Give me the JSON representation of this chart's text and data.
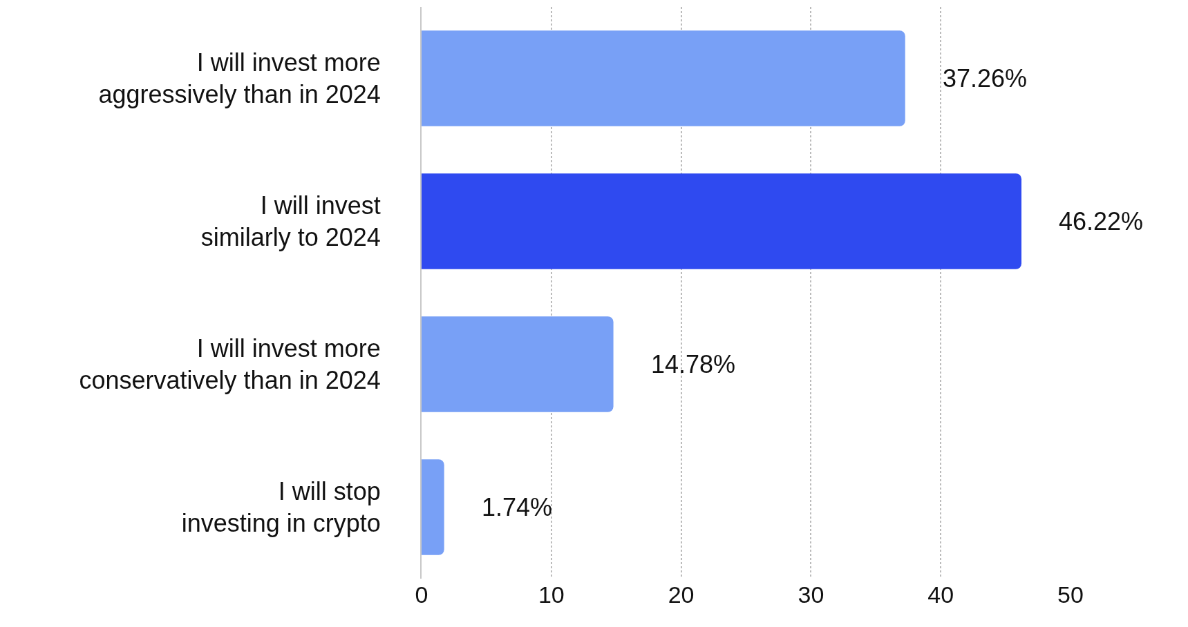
{
  "chart_data": {
    "type": "bar",
    "orientation": "horizontal",
    "categories": [
      "I will invest more aggressively than in 2024",
      "I will invest similarly to 2024",
      "I will invest more conservatively than in 2024",
      "I will stop investing in crypto"
    ],
    "values": [
      37.26,
      46.22,
      14.78,
      1.74
    ],
    "colors": [
      "#78a0f6",
      "#2f4af0",
      "#78a0f6",
      "#78a0f6"
    ],
    "value_labels": [
      "37.26%",
      "46.22%",
      "14.78%",
      "1.74%"
    ],
    "xlim": [
      0,
      50
    ],
    "xticks": [
      0,
      10,
      20,
      30,
      40,
      50
    ],
    "grid": "x"
  }
}
